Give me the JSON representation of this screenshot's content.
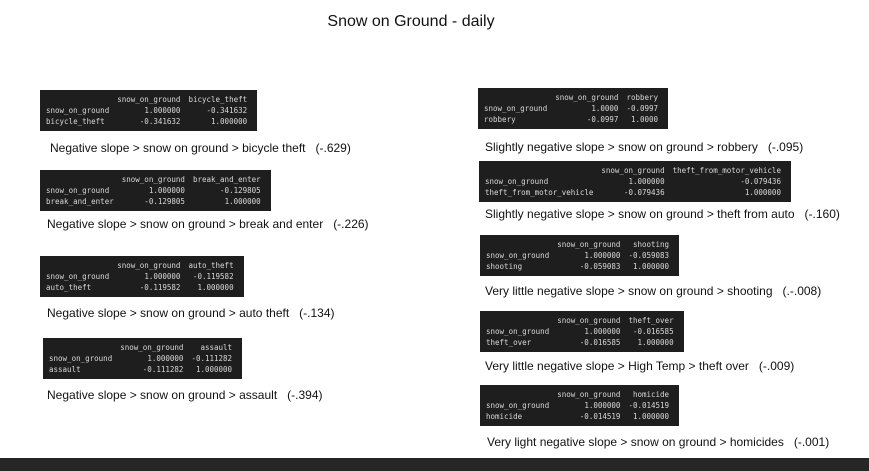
{
  "title": "Snow on Ground - daily",
  "panels": [
    {
      "table": {
        "columns": [
          "snow_on_ground",
          "bicycle_theft"
        ],
        "rows": [
          [
            "snow_on_ground",
            "1.000000",
            "-0.341632"
          ],
          [
            "bicycle_theft",
            "-0.341632",
            "1.000000"
          ]
        ]
      },
      "caption": "Negative slope > snow on ground > bicycle theft   (-.629)"
    },
    {
      "table": {
        "columns": [
          "snow_on_ground",
          "break_and_enter"
        ],
        "rows": [
          [
            "snow_on_ground",
            "1.000000",
            "-0.129805"
          ],
          [
            "break_and_enter",
            "-0.129805",
            "1.000000"
          ]
        ]
      },
      "caption": "Negative slope > snow on ground > break and enter   (-.226)"
    },
    {
      "table": {
        "columns": [
          "snow_on_ground",
          "auto_theft"
        ],
        "rows": [
          [
            "snow_on_ground",
            "1.000000",
            "-0.119582"
          ],
          [
            "auto_theft",
            "-0.119582",
            "1.000000"
          ]
        ]
      },
      "caption": "Negative slope > snow on ground > auto theft   (-.134)"
    },
    {
      "table": {
        "columns": [
          "snow_on_ground",
          "assault"
        ],
        "rows": [
          [
            "snow_on_ground",
            "1.000000",
            "-0.111282"
          ],
          [
            "assault",
            "-0.111282",
            "1.000000"
          ]
        ]
      },
      "caption": "Negative slope > snow on ground > assault   (-.394)"
    },
    {
      "table": {
        "columns": [
          "snow_on_ground",
          "robbery"
        ],
        "rows": [
          [
            "snow_on_ground",
            "1.0000",
            "-0.0997"
          ],
          [
            "robbery",
            "-0.0997",
            "1.0000"
          ]
        ]
      },
      "caption": "Slightly negative slope > snow on ground > robbery   (-.095)"
    },
    {
      "table": {
        "columns": [
          "snow_on_ground",
          "theft_from_motor_vehicle"
        ],
        "rows": [
          [
            "snow_on_ground",
            "1.000000",
            "-0.079436"
          ],
          [
            "theft_from_motor_vehicle",
            "-0.079436",
            "1.000000"
          ]
        ]
      },
      "caption": "Slightly negative slope > snow on ground > theft from auto   (-.160)"
    },
    {
      "table": {
        "columns": [
          "snow_on_ground",
          "shooting"
        ],
        "rows": [
          [
            "snow_on_ground",
            "1.000000",
            "-0.059083"
          ],
          [
            "shooting",
            "-0.059083",
            "1.000000"
          ]
        ]
      },
      "caption": "Very little negative slope > snow on ground > shooting   (.-.008)"
    },
    {
      "table": {
        "columns": [
          "snow_on_ground",
          "theft_over"
        ],
        "rows": [
          [
            "snow_on_ground",
            "1.000000",
            "-0.016585"
          ],
          [
            "theft_over",
            "-0.016585",
            "1.000000"
          ]
        ]
      },
      "caption": "Very little negative slope > High Temp > theft over   (-.009)"
    },
    {
      "table": {
        "columns": [
          "snow_on_ground",
          "homicide"
        ],
        "rows": [
          [
            "snow_on_ground",
            "1.000000",
            "-0.014519"
          ],
          [
            "homicide",
            "-0.014519",
            "1.000000"
          ]
        ]
      },
      "caption": "Very light negative slope > snow on ground > homicides   (-.001)"
    }
  ]
}
